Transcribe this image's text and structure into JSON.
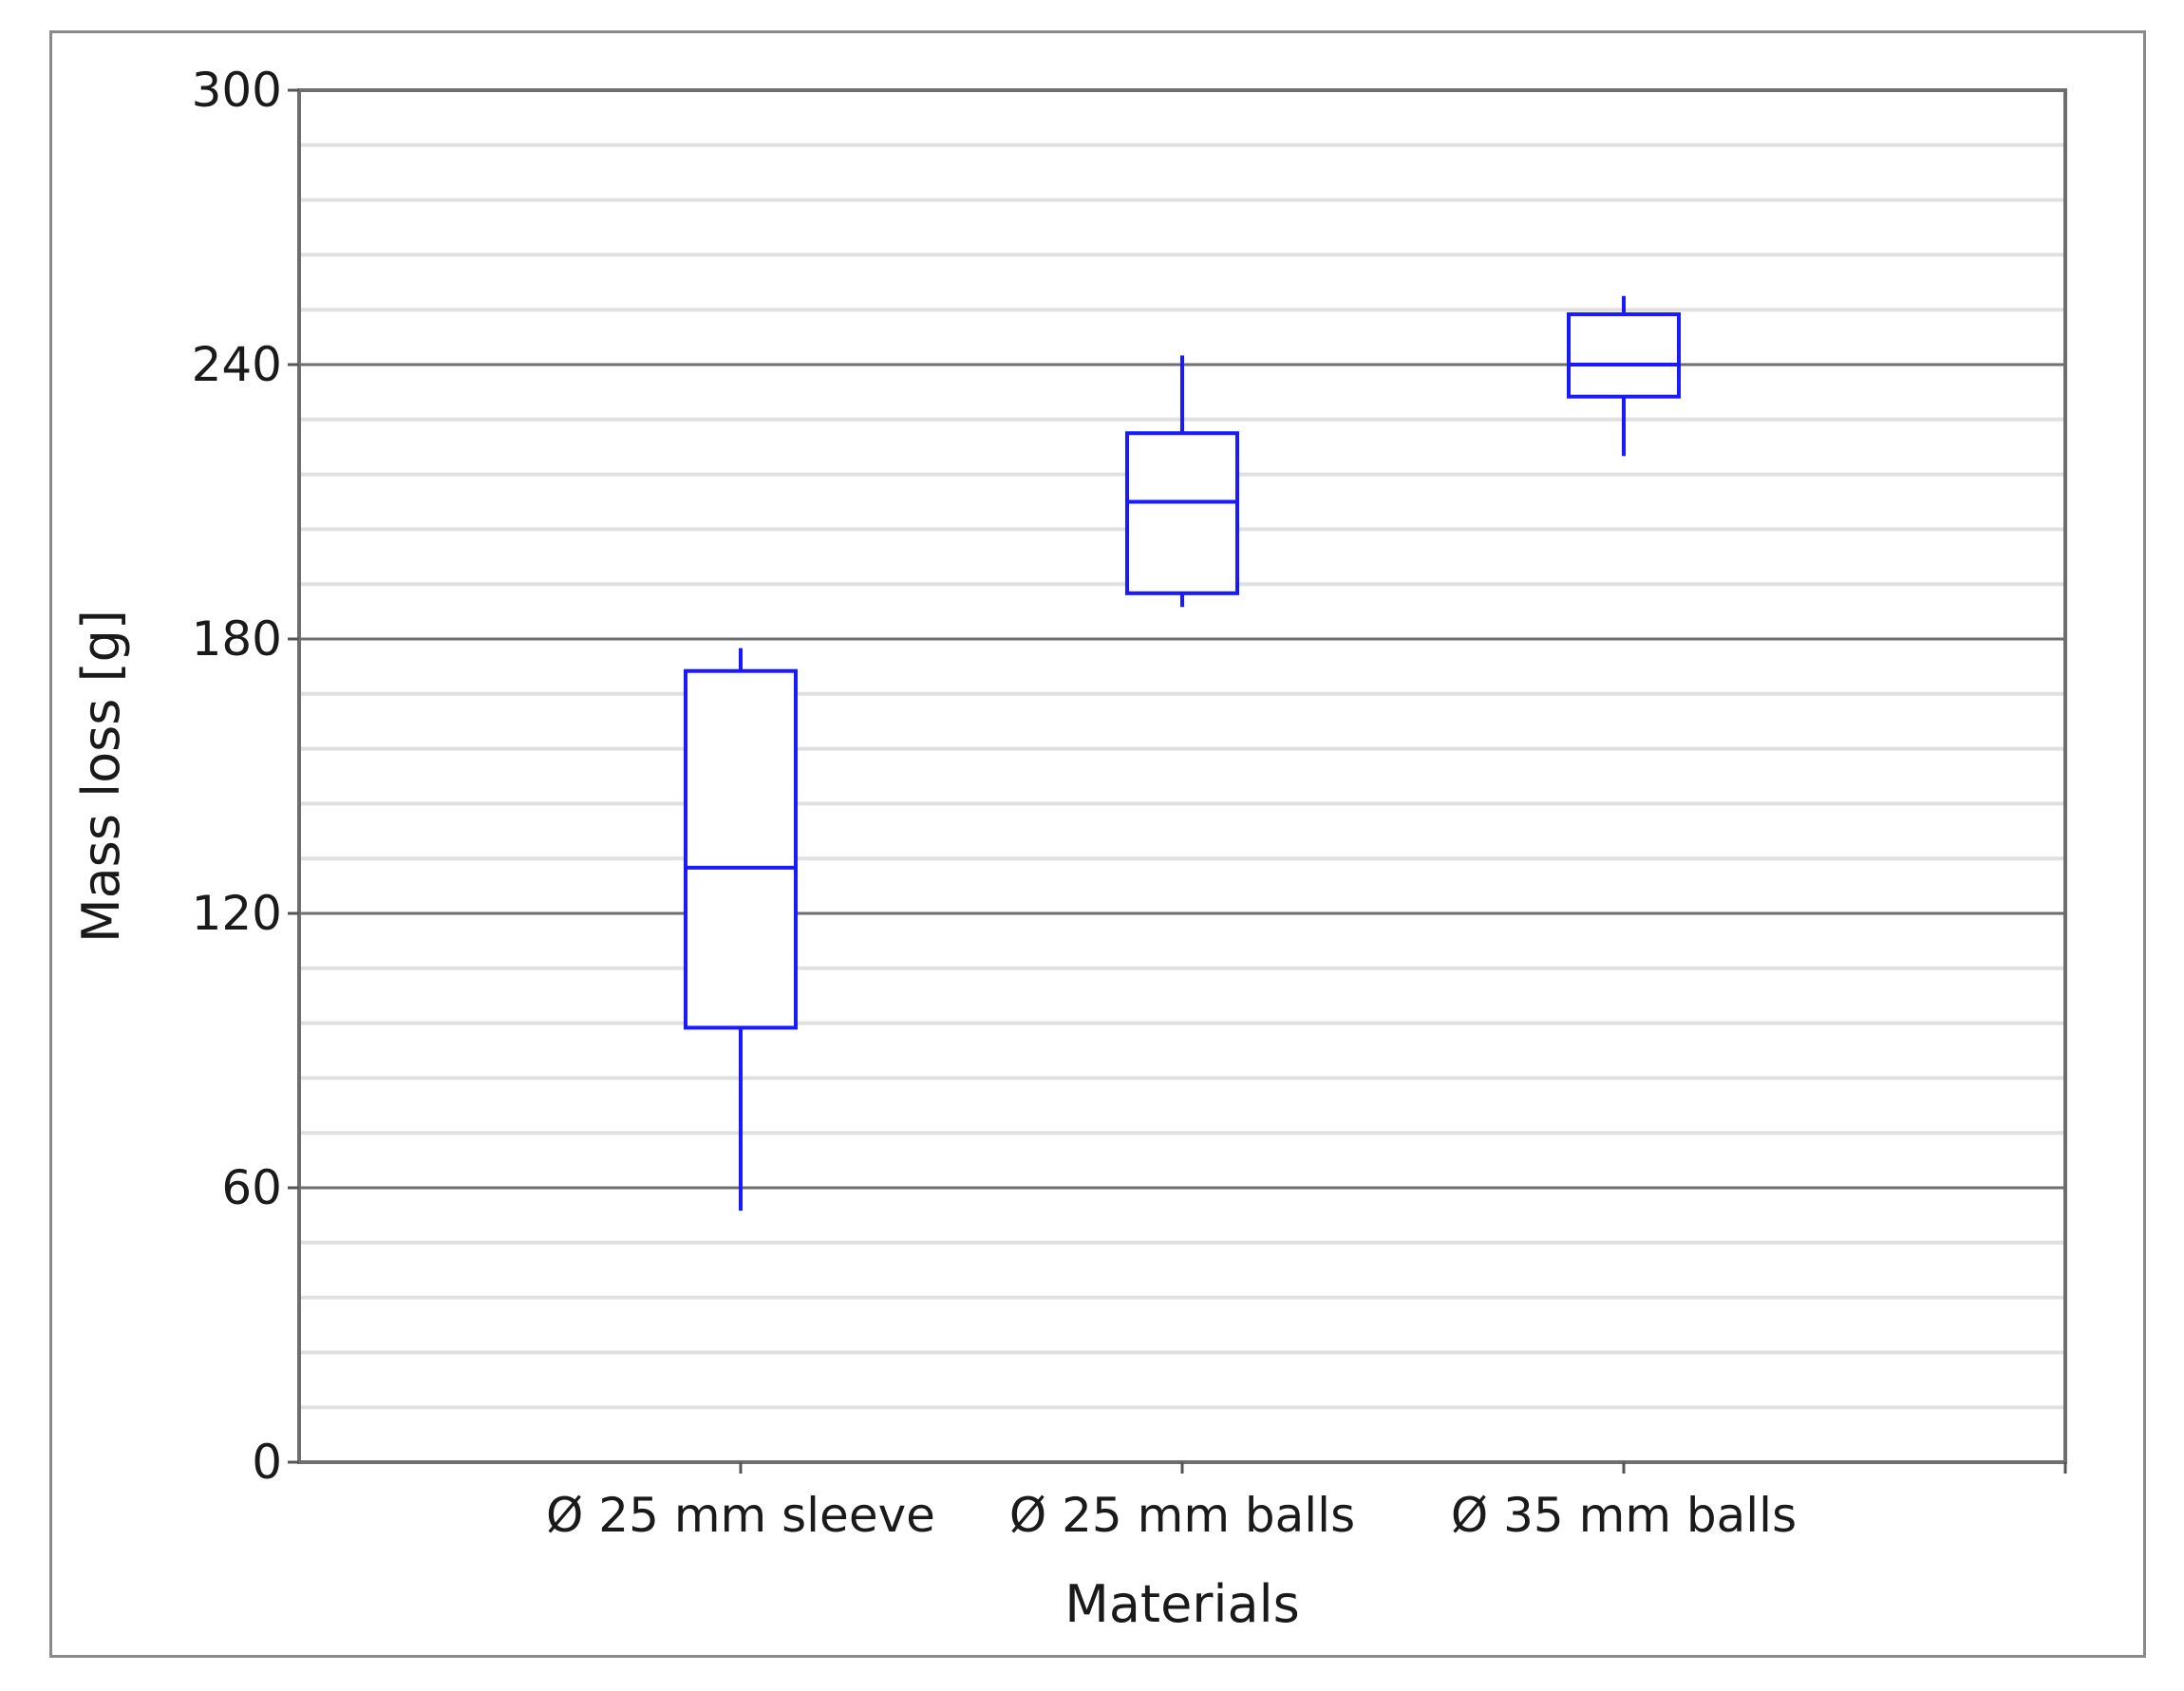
{
  "chart_data": {
    "type": "box",
    "title": "",
    "xlabel": "Materials",
    "ylabel": "Mass loss [g]",
    "ylim": [
      0,
      300
    ],
    "yticks": [
      0,
      60,
      120,
      180,
      240,
      300
    ],
    "minor_grid_step": 12,
    "grid": true,
    "legend": "none",
    "box_color": "#1a1aff",
    "categories": [
      "Ø 25 mm sleeve",
      "Ø 25 mm balls",
      "Ø 35 mm balls"
    ],
    "boxes": [
      {
        "category": "Ø 25 mm sleeve",
        "min": 55,
        "q1": 95,
        "median": 130,
        "q3": 173,
        "max": 178
      },
      {
        "category": "Ø 25 mm balls",
        "min": 187,
        "q1": 190,
        "median": 210,
        "q3": 225,
        "max": 242
      },
      {
        "category": "Ø 35 mm balls",
        "min": 220,
        "q1": 233,
        "median": 240,
        "q3": 251,
        "max": 255
      }
    ]
  }
}
